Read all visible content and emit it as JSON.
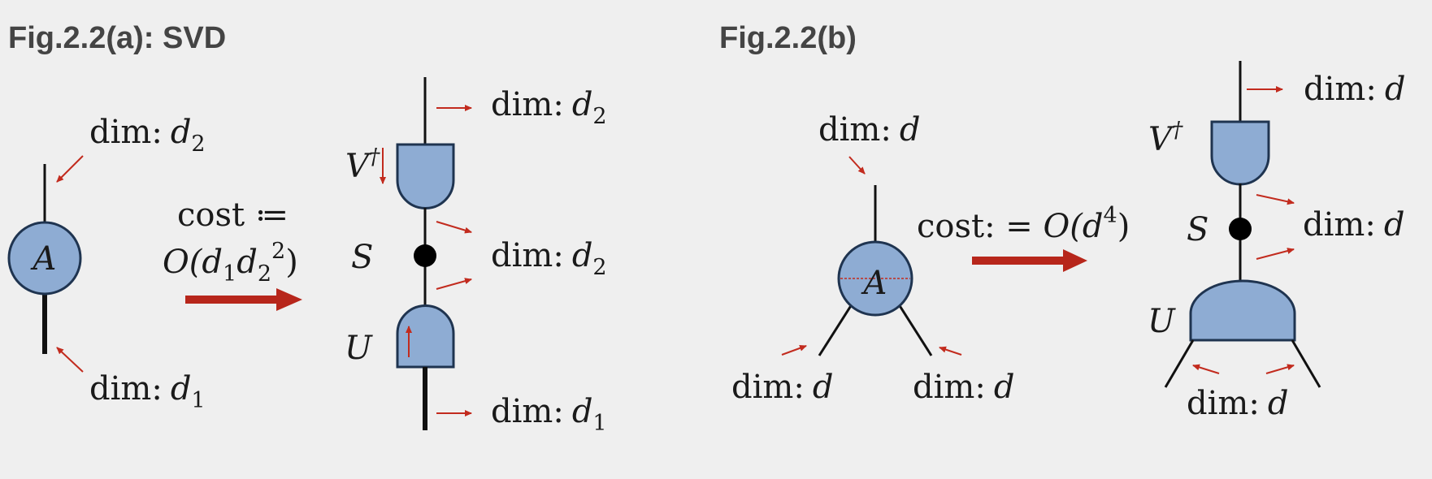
{
  "figure_a": {
    "title": "Fig.2.2(a): SVD",
    "tensor_label": "A",
    "dim_top": "dim:",
    "d2": "d",
    "sub2": "2",
    "d1": "d",
    "sub1": "1",
    "cost_line1": "cost ≔",
    "cost_O": "O(",
    "cost_d1": "d",
    "cost_d1_sub": "1",
    "cost_d2": "d",
    "cost_d2_sub": "2",
    "cost_d2_sup": "2",
    "cost_close": ")",
    "V_label": "V",
    "dagger": "†",
    "S_label": "S",
    "U_label": "U"
  },
  "figure_b": {
    "title": "Fig.2.2(b)",
    "tensor_label": "A",
    "dim_label": "dim:",
    "d": "d",
    "cost_text": "cost: = ",
    "cost_O": "O(",
    "cost_d": "d",
    "cost_sup": "4",
    "cost_close": ")",
    "V_label": "V",
    "dagger": "†",
    "S_label": "S",
    "U_label": "U"
  }
}
